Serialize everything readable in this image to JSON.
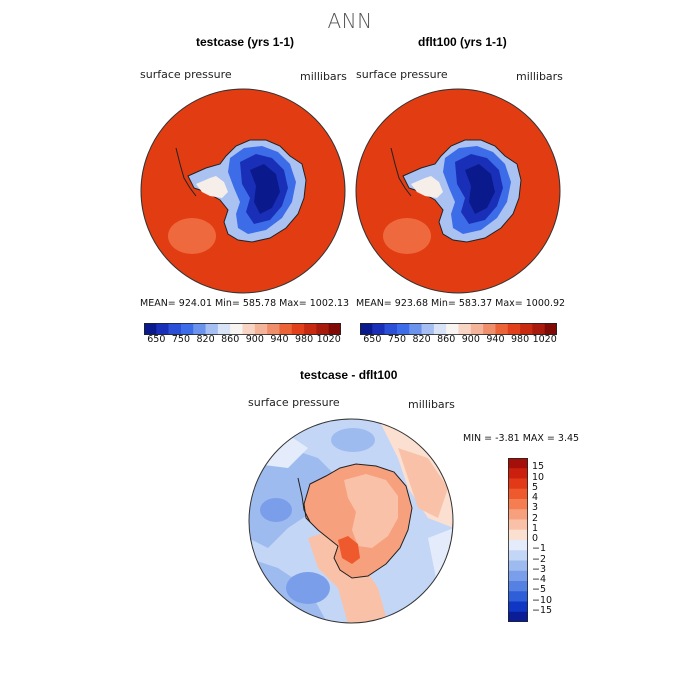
{
  "figure": {
    "title": "ANN"
  },
  "chart_data": [
    {
      "type": "heatmap",
      "projection": "south-polar-stereographic",
      "title": "testcase (yrs 1-1)",
      "field_label": "surface pressure",
      "units_label": "millibars",
      "stats": {
        "mean": "924.01",
        "min": "585.78",
        "max": "1002.13"
      },
      "stats_text": "MEAN= 924.01  Min= 585.78  Max= 1002.13",
      "colorbar": {
        "orientation": "horizontal",
        "tick_labels": [
          "650",
          "750",
          "820",
          "860",
          "900",
          "940",
          "980",
          "1020"
        ],
        "colors": [
          "#0a1a8c",
          "#1a2fb8",
          "#2b4fd6",
          "#3d6ce8",
          "#6b93ee",
          "#a6bff2",
          "#d9e3f7",
          "#f8f4f2",
          "#f7d4c4",
          "#f4b49a",
          "#ef8e6a",
          "#ea6438",
          "#e1401a",
          "#c72a10",
          "#a81a0b",
          "#7f0a06"
        ]
      }
    },
    {
      "type": "heatmap",
      "projection": "south-polar-stereographic",
      "title": "dflt100 (yrs 1-1)",
      "field_label": "surface pressure",
      "units_label": "millibars",
      "stats": {
        "mean": "923.68",
        "min": "583.37",
        "max": "1000.92"
      },
      "stats_text": "MEAN= 923.68  Min= 583.37  Max= 1000.92",
      "colorbar": {
        "orientation": "horizontal",
        "tick_labels": [
          "650",
          "750",
          "820",
          "860",
          "900",
          "940",
          "980",
          "1020"
        ],
        "colors": [
          "#0a1a8c",
          "#1a2fb8",
          "#2b4fd6",
          "#3d6ce8",
          "#6b93ee",
          "#a6bff2",
          "#d9e3f7",
          "#f8f4f2",
          "#f7d4c4",
          "#f4b49a",
          "#ef8e6a",
          "#ea6438",
          "#e1401a",
          "#c72a10",
          "#a81a0b",
          "#7f0a06"
        ]
      }
    },
    {
      "type": "heatmap",
      "projection": "south-polar-stereographic",
      "title": "testcase - dflt100",
      "field_label": "surface pressure",
      "units_label": "millibars",
      "stats": {
        "min": "-3.81",
        "max": "3.45"
      },
      "stats_text": "MIN =   -3.81 MAX =    3.45",
      "colorbar": {
        "orientation": "vertical",
        "tick_labels": [
          "15",
          "10",
          "5",
          "4",
          "3",
          "2",
          "1",
          "0",
          "−1",
          "−2",
          "−3",
          "−4",
          "−5",
          "−10",
          "−15"
        ],
        "colors": [
          "#a50f0a",
          "#cc200f",
          "#e23a18",
          "#ee5a2e",
          "#f47d52",
          "#f7a07d",
          "#f9c2a8",
          "#fbe0d2",
          "#e4ecfb",
          "#c4d6f6",
          "#9ebbf0",
          "#7a9eea",
          "#5581e2",
          "#2f5fd8",
          "#1036c4",
          "#0a1d96"
        ]
      }
    }
  ]
}
